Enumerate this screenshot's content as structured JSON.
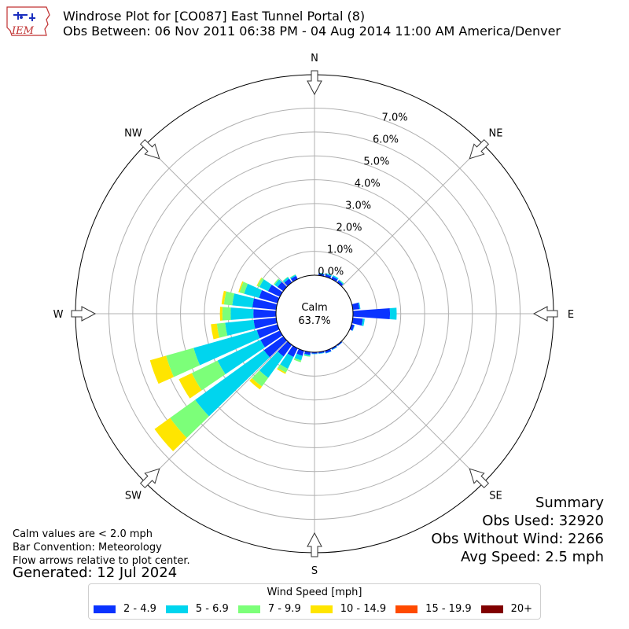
{
  "header": {
    "title": "Windrose Plot for [CO087] East Tunnel Portal (8)",
    "subtitle": "Obs Between: 06 Nov 2011 06:38 PM - 04 Aug 2014 11:00 AM America/Denver",
    "logo_text": "IEM"
  },
  "notes": {
    "line1": "Calm values are < 2.0 mph",
    "line2": "Bar Convention: Meteorology",
    "line3": "Flow arrows relative to plot center.",
    "generated": "Generated: 12 Jul 2024"
  },
  "summary": {
    "title": "Summary",
    "obs_used": "Obs Used: 32920",
    "obs_without_wind": "Obs Without Wind: 2266",
    "avg_speed": "Avg Speed: 2.5 mph"
  },
  "legend": {
    "title": "Wind Speed [mph]",
    "items": [
      {
        "label": "2 - 4.9",
        "color": "#0a33ff"
      },
      {
        "label": "5 - 6.9",
        "color": "#00d5ee"
      },
      {
        "label": "7 - 9.9",
        "color": "#7cff79"
      },
      {
        "label": "10 - 14.9",
        "color": "#ffe500"
      },
      {
        "label": "15 - 19.9",
        "color": "#ff4a00"
      },
      {
        "label": "20+",
        "color": "#800000"
      }
    ]
  },
  "chart_data": {
    "type": "windrose",
    "center_label": "Calm",
    "calm_percent": "63.7%",
    "radial_unit": "%",
    "radial_ticks": [
      "0.0%",
      "1.0%",
      "2.0%",
      "3.0%",
      "4.0%",
      "5.0%",
      "6.0%",
      "7.0%"
    ],
    "radial_max": 8.4,
    "direction_labels": [
      "N",
      "NE",
      "E",
      "SE",
      "S",
      "SW",
      "W",
      "NW"
    ],
    "bin_width_deg": 10,
    "speed_bins": [
      "2 - 4.9",
      "5 - 6.9",
      "7 - 9.9",
      "10 - 14.9",
      "15 - 19.9",
      "20+"
    ],
    "bars": [
      {
        "dir": 10,
        "values": [
          0.08,
          0.03,
          0,
          0,
          0,
          0
        ]
      },
      {
        "dir": 20,
        "values": [
          0.1,
          0.05,
          0,
          0,
          0,
          0
        ]
      },
      {
        "dir": 30,
        "values": [
          0.12,
          0.06,
          0,
          0,
          0,
          0
        ]
      },
      {
        "dir": 40,
        "values": [
          0.1,
          0.04,
          0.02,
          0,
          0,
          0
        ]
      },
      {
        "dir": 80,
        "values": [
          0.28,
          0.04,
          0,
          0,
          0,
          0
        ]
      },
      {
        "dir": 90,
        "values": [
          1.55,
          0.28,
          0,
          0,
          0,
          0
        ]
      },
      {
        "dir": 100,
        "values": [
          0.42,
          0.08,
          0,
          0,
          0,
          0
        ]
      },
      {
        "dir": 110,
        "values": [
          0.12,
          0.02,
          0,
          0,
          0,
          0
        ]
      },
      {
        "dir": 140,
        "values": [
          0.05,
          0.01,
          0,
          0,
          0,
          0
        ]
      },
      {
        "dir": 150,
        "values": [
          0.06,
          0.02,
          0,
          0,
          0,
          0
        ]
      },
      {
        "dir": 160,
        "values": [
          0.1,
          0.02,
          0,
          0,
          0,
          0
        ]
      },
      {
        "dir": 170,
        "values": [
          0.06,
          0.02,
          0,
          0,
          0,
          0
        ]
      },
      {
        "dir": 180,
        "values": [
          0.06,
          0.02,
          0,
          0,
          0,
          0
        ]
      },
      {
        "dir": 190,
        "values": [
          0.12,
          0.05,
          0.03,
          0,
          0,
          0
        ]
      },
      {
        "dir": 200,
        "values": [
          0.22,
          0.2,
          0.08,
          0,
          0,
          0
        ]
      },
      {
        "dir": 210,
        "values": [
          0.4,
          0.55,
          0.18,
          0.06,
          0,
          0
        ]
      },
      {
        "dir": 220,
        "values": [
          0.6,
          1.1,
          0.45,
          0.15,
          0,
          0
        ]
      },
      {
        "dir": 230,
        "values": [
          1.0,
          3.55,
          1.3,
          0.8,
          0,
          0
        ]
      },
      {
        "dir": 240,
        "values": [
          0.9,
          2.0,
          1.2,
          0.6,
          0,
          0
        ]
      },
      {
        "dir": 250,
        "values": [
          0.9,
          2.75,
          1.2,
          0.7,
          0,
          0
        ]
      },
      {
        "dir": 260,
        "values": [
          0.95,
          1.2,
          0.35,
          0.25,
          0,
          0
        ]
      },
      {
        "dir": 270,
        "values": [
          0.95,
          0.95,
          0.35,
          0.1,
          0,
          0
        ]
      },
      {
        "dir": 280,
        "values": [
          1.0,
          0.85,
          0.35,
          0.1,
          0,
          0
        ]
      },
      {
        "dir": 290,
        "values": [
          0.8,
          0.65,
          0.2,
          0.05,
          0,
          0
        ]
      },
      {
        "dir": 300,
        "values": [
          0.55,
          0.4,
          0.1,
          0.03,
          0,
          0
        ]
      },
      {
        "dir": 310,
        "values": [
          0.3,
          0.15,
          0.05,
          0,
          0,
          0
        ]
      },
      {
        "dir": 320,
        "values": [
          0.2,
          0.08,
          0.02,
          0,
          0,
          0
        ]
      },
      {
        "dir": 330,
        "values": [
          0.15,
          0.05,
          0.02,
          0,
          0,
          0
        ]
      }
    ]
  }
}
